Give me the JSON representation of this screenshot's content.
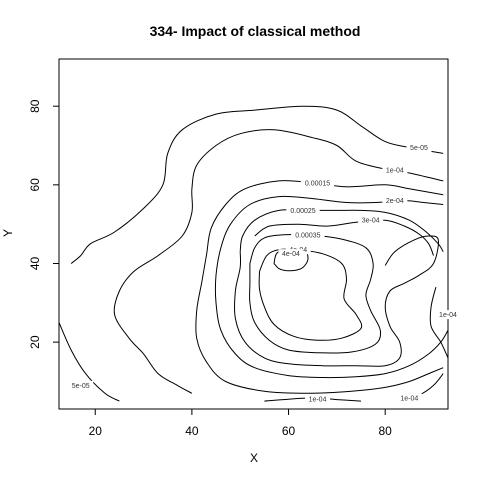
{
  "chart_data": {
    "type": "contour",
    "title": "334- Impact of classical method",
    "xlabel": "X",
    "ylabel": "Y",
    "xlim": [
      12.5,
      93
    ],
    "ylim": [
      3,
      92
    ],
    "x_ticks": [
      20,
      40,
      60,
      80
    ],
    "y_ticks": [
      20,
      40,
      60,
      80
    ],
    "grid": false,
    "legend": "none",
    "line_color": "#000000",
    "contour_levels": [
      {
        "label": "5e-05",
        "paths": [
          [
            [
              92,
              68
            ],
            [
              85,
              69.5
            ],
            [
              80,
              71
            ],
            [
              75,
              75
            ],
            [
              70,
              79
            ],
            [
              63,
              80
            ],
            [
              53,
              79
            ],
            [
              45,
              78
            ],
            [
              38,
              74
            ],
            [
              35,
              68
            ],
            [
              34,
              60
            ],
            [
              30,
              54
            ],
            [
              24,
              48
            ],
            [
              19,
              45
            ],
            [
              17,
              42
            ],
            [
              15,
              40
            ]
          ],
          [
            [
              12.5,
              25
            ],
            [
              15,
              18
            ],
            [
              18,
              12
            ],
            [
              22,
              7
            ],
            [
              25,
              5
            ]
          ]
        ],
        "labels_at": [
          [
            87,
            69.5
          ],
          [
            17,
            9
          ]
        ]
      },
      {
        "label": "1e-04",
        "paths": [
          [
            [
              92,
              61
            ],
            [
              85,
              63
            ],
            [
              80,
              64
            ],
            [
              74,
              66
            ],
            [
              70,
              70
            ],
            [
              65,
              72
            ],
            [
              57,
              74
            ],
            [
              50,
              73
            ],
            [
              45,
              70
            ],
            [
              41,
              65
            ],
            [
              40,
              59
            ],
            [
              40,
              53
            ],
            [
              38,
              47
            ],
            [
              33,
              42
            ],
            [
              28,
              38
            ],
            [
              25,
              33
            ],
            [
              24,
              27
            ],
            [
              27,
              21
            ],
            [
              30,
              17
            ],
            [
              33,
              12
            ],
            [
              37,
              9
            ],
            [
              40,
              7
            ]
          ],
          [
            [
              90.5,
              34
            ],
            [
              89.5,
              29
            ],
            [
              89.5,
              24
            ],
            [
              91.5,
              20
            ],
            [
              93,
              16
            ]
          ],
          [
            [
              55,
              5
            ],
            [
              60,
              5.5
            ],
            [
              65,
              5.8
            ],
            [
              70,
              5.4
            ],
            [
              75,
              5
            ]
          ],
          [
            [
              83,
              5
            ],
            [
              87,
              6.5
            ],
            [
              90,
              9
            ],
            [
              92,
              12
            ]
          ]
        ],
        "labels_at": [
          [
            82,
            63.8
          ],
          [
            93,
            27
          ],
          [
            66,
            5.6
          ],
          [
            85,
            5.8
          ]
        ]
      },
      {
        "label": "0.00015",
        "paths": [
          [
            [
              92,
              57.5
            ],
            [
              85,
              59
            ],
            [
              80,
              60
            ],
            [
              72,
              59.5
            ],
            [
              65,
              60.5
            ],
            [
              58,
              61
            ],
            [
              51,
              59
            ],
            [
              47,
              55
            ],
            [
              44,
              49
            ],
            [
              43,
              42
            ],
            [
              42,
              35
            ],
            [
              41,
              28
            ],
            [
              41,
              21
            ],
            [
              43,
              15
            ],
            [
              47,
              10
            ],
            [
              55,
              7.5
            ],
            [
              64,
              7
            ],
            [
              73,
              7.5
            ],
            [
              80,
              8.5
            ],
            [
              85,
              10
            ],
            [
              89,
              12
            ],
            [
              92,
              13.5
            ]
          ]
        ],
        "labels_at": [
          [
            66,
            60.5
          ]
        ]
      },
      {
        "label": "2e-04",
        "paths": [
          [
            [
              92,
              55
            ],
            [
              88,
              55.5
            ],
            [
              84,
              56
            ],
            [
              78,
              55.5
            ],
            [
              72,
              55.5
            ],
            [
              65,
              56.5
            ],
            [
              58,
              57
            ],
            [
              52,
              55
            ],
            [
              48,
              50
            ],
            [
              46,
              44
            ],
            [
              45,
              37
            ],
            [
              45,
              30
            ],
            [
              46,
              23
            ],
            [
              49,
              17
            ],
            [
              53,
              13.5
            ],
            [
              60,
              11.5
            ],
            [
              67,
              11
            ],
            [
              74,
              11.2
            ],
            [
              80,
              12
            ],
            [
              85,
              14
            ],
            [
              89,
              17
            ],
            [
              91.5,
              20
            ],
            [
              93,
              23
            ]
          ]
        ],
        "labels_at": [
          [
            82,
            56
          ]
        ]
      },
      {
        "label": "0.00025",
        "paths": [
          [
            [
              50,
              43
            ],
            [
              50.5,
              47
            ],
            [
              53,
              51
            ],
            [
              58,
              53.5
            ],
            [
              64,
              53.5
            ],
            [
              70,
              53.5
            ],
            [
              75,
              53.5
            ],
            [
              80,
              53
            ],
            [
              85,
              51
            ],
            [
              88.5,
              48
            ],
            [
              91,
              45
            ],
            [
              92,
              43
            ]
          ]
        ],
        "labels_at": [
          [
            63,
            53.5
          ]
        ]
      },
      {
        "label": "3e-04",
        "paths": [
          [
            [
              80,
              39.5
            ],
            [
              82,
              43
            ],
            [
              86,
              46
            ],
            [
              89,
              47
            ],
            [
              91,
              46
            ],
            [
              90,
              40
            ],
            [
              87,
              37
            ],
            [
              84,
              35
            ],
            [
              81,
              33
            ],
            [
              80,
              29
            ],
            [
              81,
              24
            ],
            [
              83,
              20
            ],
            [
              83,
              16
            ],
            [
              80,
              14
            ],
            [
              74,
              14
            ],
            [
              67,
              14
            ],
            [
              60,
              14.5
            ],
            [
              55,
              16
            ],
            [
              51,
              20
            ],
            [
              49,
              26
            ],
            [
              49,
              33
            ],
            [
              50,
              39
            ],
            [
              50,
              43
            ]
          ],
          [
            [
              53,
              47
            ],
            [
              56,
              49.5
            ],
            [
              62,
              50
            ],
            [
              68,
              49.5
            ],
            [
              74,
              50.5
            ],
            [
              80,
              51
            ],
            [
              84,
              49.5
            ],
            [
              87,
              47.5
            ],
            [
              89,
              45
            ],
            [
              90,
              42
            ]
          ]
        ],
        "labels_at": [
          [
            77,
            51
          ]
        ]
      },
      {
        "label": "0.00035",
        "paths": [
          [
            [
              52,
              40
            ],
            [
              53,
              44
            ],
            [
              55,
              46.5
            ],
            [
              59,
              47.3
            ],
            [
              65,
              47.2
            ],
            [
              71,
              46.2
            ],
            [
              76,
              44
            ],
            [
              77.5,
              40
            ],
            [
              77,
              36
            ],
            [
              76,
              32
            ],
            [
              77,
              28
            ],
            [
              79,
              23
            ],
            [
              78,
              19.5
            ],
            [
              73,
              17.5
            ],
            [
              66,
              17.3
            ],
            [
              60,
              18
            ],
            [
              56,
              20.5
            ],
            [
              53,
              25
            ],
            [
              52,
              30
            ],
            [
              52,
              35
            ],
            [
              52,
              40
            ]
          ]
        ],
        "labels_at": [
          [
            64,
            47.3
          ]
        ]
      },
      {
        "label": "4e-04",
        "paths": [
          [
            [
              54,
              38
            ],
            [
              55.5,
              42
            ],
            [
              58,
              43.5
            ],
            [
              62,
              43.5
            ],
            [
              67,
              42.5
            ],
            [
              71,
              40
            ],
            [
              72,
              36
            ],
            [
              71.5,
              31
            ],
            [
              74,
              27
            ],
            [
              75,
              23.5
            ],
            [
              71,
              21
            ],
            [
              66,
              20.5
            ],
            [
              61,
              21.5
            ],
            [
              57,
              24.5
            ],
            [
              55,
              29
            ],
            [
              54,
              33.5
            ],
            [
              54,
              38
            ]
          ]
        ],
        "labels_at": [
          [
            62,
            43.5
          ]
        ]
      },
      {
        "label": "4e-04",
        "paths": [
          [
            [
              57,
              40
            ],
            [
              57.5,
              42.5
            ],
            [
              59,
              43.5
            ],
            [
              61.5,
              43.7
            ],
            [
              63.5,
              43.2
            ],
            [
              64,
              41
            ],
            [
              63,
              39
            ],
            [
              61.5,
              38.3
            ],
            [
              59.5,
              38.2
            ],
            [
              58,
              38.7
            ],
            [
              57,
              40
            ]
          ]
        ],
        "labels_at": [
          [
            60.5,
            42.5
          ]
        ]
      }
    ]
  }
}
